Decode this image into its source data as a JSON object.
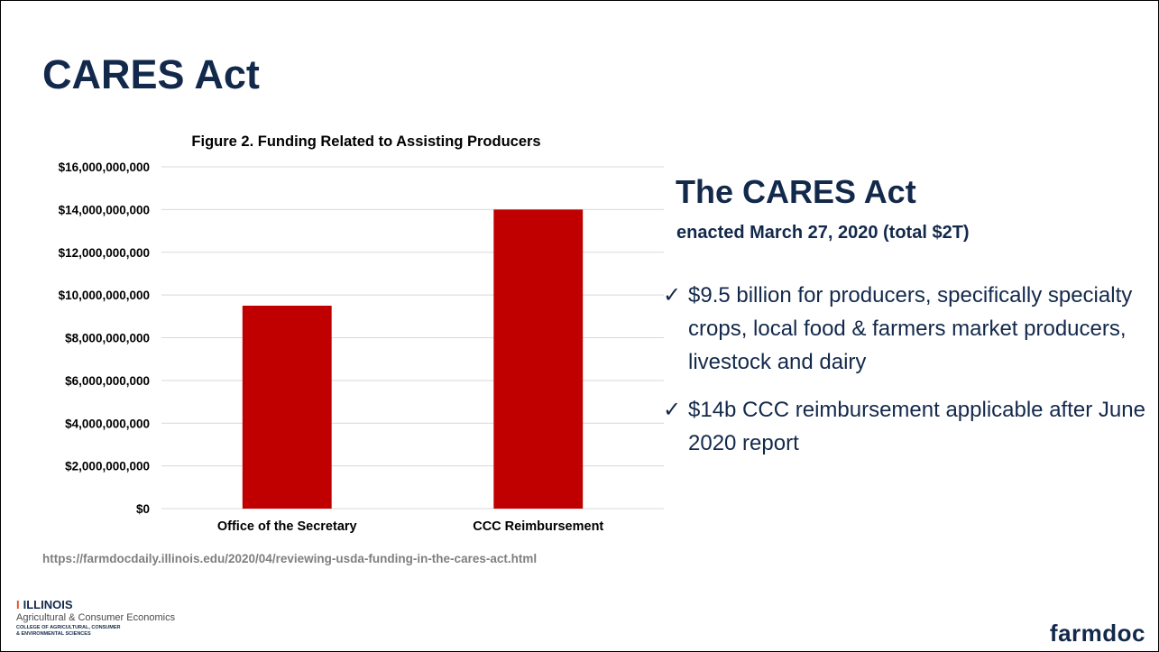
{
  "slide": {
    "title": "CARES Act",
    "source_url": "https://farmdocdaily.illinois.edu/2020/04/reviewing-usda-funding-in-the-cares-act.html"
  },
  "chart_data": {
    "type": "bar",
    "title": "Figure 2. Funding Related to Assisting Producers",
    "categories": [
      "Office of the Secretary",
      "CCC Reimbursement"
    ],
    "values": [
      9500000000,
      14000000000
    ],
    "ylim": [
      0,
      16000000000
    ],
    "yticks": [
      0,
      2000000000,
      4000000000,
      6000000000,
      8000000000,
      10000000000,
      12000000000,
      14000000000,
      16000000000
    ],
    "ytick_labels": [
      "$0",
      "$2,000,000,000",
      "$4,000,000,000",
      "$6,000,000,000",
      "$8,000,000,000",
      "$10,000,000,000",
      "$12,000,000,000",
      "$14,000,000,000",
      "$16,000,000,000"
    ],
    "xlabel": "",
    "ylabel": "",
    "grid": true,
    "bar_color": "#C00000"
  },
  "side": {
    "heading": "The CARES Act",
    "subheading": "enacted March 27, 2020 (total $2T)",
    "bullets": [
      {
        "check": "✓",
        "text": "$9.5 billion for producers, specifically specialty crops, local food & farmers market producers, livestock and dairy"
      },
      {
        "check": "✓",
        "text": "$14b CCC reimbursement applicable after June 2020 report"
      }
    ]
  },
  "footer": {
    "logo_mark": "I",
    "logo_title": "ILLINOIS",
    "department": "Agricultural & Consumer Economics",
    "college_line1": "COLLEGE OF AGRICULTURAL, CONSUMER",
    "college_line2": "& ENVIRONMENTAL SCIENCES",
    "brand": "farmdoc"
  },
  "colors": {
    "navy": "#13294B",
    "orange": "#E84A27",
    "bar": "#C00000",
    "source_gray": "#7f7f7f"
  }
}
